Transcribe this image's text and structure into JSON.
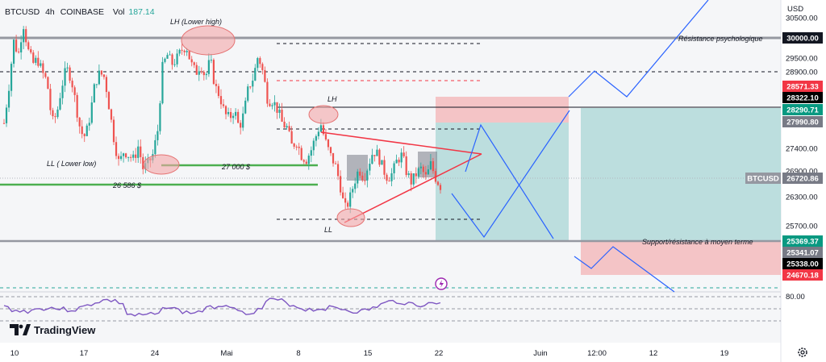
{
  "header": {
    "symbol": "BTCUSD",
    "interval": "4h",
    "exchange": "COINBASE",
    "vol_label": "Vol",
    "vol_value": "187.14",
    "currency": "USD"
  },
  "brand": {
    "name": "TradingView"
  },
  "colors": {
    "up": "#26a69a",
    "down": "#ef5350",
    "accent_blue": "#2962ff",
    "support_green": "#4caf50",
    "rsi": "#7e57c2",
    "drawing_red": "#f23645"
  },
  "icons": [
    "settings-gear-icon",
    "alert-icon",
    "tradingview-logo-icon"
  ],
  "annotations": {
    "lh_lower_high": "LH (Lower high)",
    "ll_lower_low": "LL ( Lower low)",
    "level_27000": "27 000 $",
    "level_26586": "26 586 $",
    "lh": "LH",
    "ll": "LL",
    "resistance": "Résistance psychologique",
    "support": "Support/résistance à moyen terme"
  },
  "y_axis_ticks": [
    "30500.00",
    "29500.00",
    "28900.00",
    "27400.00",
    "26900.00",
    "26300.00",
    "25700.00"
  ],
  "price_tags": [
    {
      "text": "30000.00",
      "kind": "dark"
    },
    {
      "text": "28571.33",
      "kind": "red"
    },
    {
      "text": "28322.10",
      "kind": "black"
    },
    {
      "text": "28290.71",
      "kind": "teal"
    },
    {
      "text": "27990.80",
      "kind": "grey"
    },
    {
      "text": "26720.86",
      "kind": "grey"
    },
    {
      "text": "25369.37",
      "kind": "teal"
    },
    {
      "text": "25341.07",
      "kind": "grey"
    },
    {
      "text": "25338.00",
      "kind": "black"
    },
    {
      "text": "24670.18",
      "kind": "red"
    }
  ],
  "last_price_label": "BTCUSD",
  "rsi_tick": "80.00",
  "x_axis_labels": [
    "10",
    "17",
    "24",
    "Mai",
    "8",
    "15",
    "22",
    "Juin",
    "12:00",
    "12",
    "19"
  ],
  "chart_data": {
    "type": "candlestick",
    "symbol": "BTCUSD",
    "last_price": 26720.86,
    "ylim": [
      24400,
      30800
    ],
    "levels": [
      {
        "name": "Résistance psychologique",
        "value": 30000
      },
      {
        "name": "Support/résistance à moyen terme",
        "value": 25369.37
      },
      {
        "name": "27 000 $",
        "value": 27000
      },
      {
        "name": "26 586 $",
        "value": 26586
      }
    ],
    "close_path": [
      28100,
      28900,
      29900,
      29600,
      30300,
      29700,
      29400,
      29500,
      29200,
      29000,
      28100,
      28300,
      28900,
      29300,
      29100,
      28500,
      27900,
      27800,
      28300,
      29000,
      29200,
      29100,
      28400,
      27700,
      27200,
      27500,
      27400,
      27300,
      27600,
      27100,
      27200,
      27400,
      27900,
      29300,
      29600,
      29400,
      29500,
      29700,
      29800,
      29400,
      29200,
      29400,
      29100,
      29500,
      28900,
      28700,
      28300,
      28200,
      28400,
      28000,
      28300,
      28900,
      29100,
      29600,
      29200,
      28600,
      28600,
      28400,
      28100,
      28000,
      27600,
      27700,
      27400,
      27300,
      27500,
      27800,
      28100,
      27700,
      27400,
      27200,
      26800,
      26200,
      26400,
      26800,
      27100,
      26900,
      27200,
      27500,
      27400,
      27100,
      26900,
      27000,
      27300,
      27400,
      27000,
      26800,
      27000,
      27100,
      26900,
      27200,
      26900,
      26720
    ]
  }
}
